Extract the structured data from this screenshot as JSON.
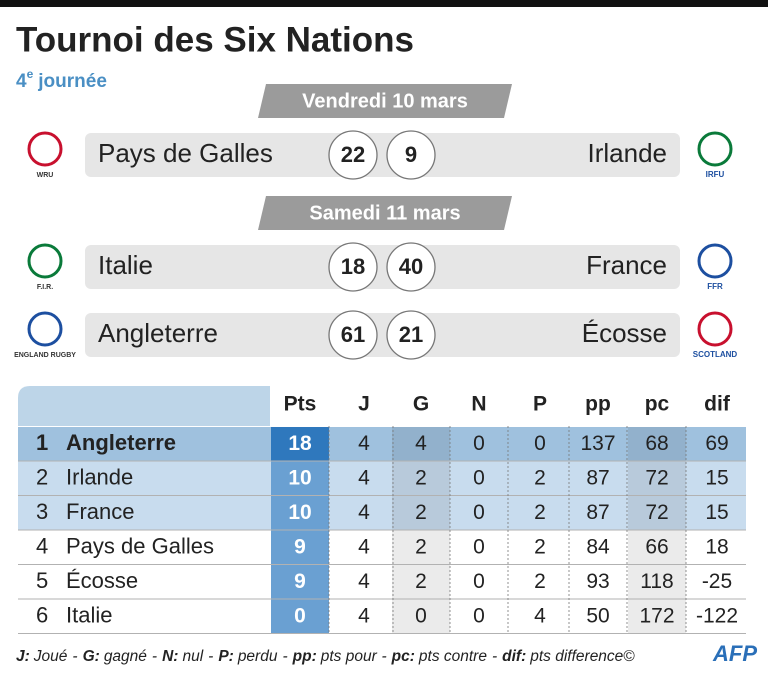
{
  "header": {
    "title": "Tournoi des Six Nations",
    "subtitle_number": "4",
    "subtitle_sup": "e",
    "subtitle_text": "journée"
  },
  "days": [
    {
      "label": "Vendredi 10 mars",
      "matches": [
        {
          "home": "Pays de Galles",
          "home_score": 22,
          "away_score": 9,
          "away": "Irlande",
          "home_logo": "WRU",
          "away_logo": "IRFU"
        }
      ]
    },
    {
      "label": "Samedi 11 mars",
      "matches": [
        {
          "home": "Italie",
          "home_score": 18,
          "away_score": 40,
          "away": "France",
          "home_logo": "F.I.R.",
          "away_logo": "FFR"
        },
        {
          "home": "Angleterre",
          "home_score": 61,
          "away_score": 21,
          "away": "Écosse",
          "home_logo": "ENGLAND RUGBY",
          "away_logo": "SCOTLAND"
        }
      ]
    }
  ],
  "table": {
    "columns": [
      "Pts",
      "J",
      "G",
      "N",
      "P",
      "pp",
      "pc",
      "dif"
    ],
    "rows": [
      [
        1,
        "Angleterre",
        18,
        4,
        4,
        0,
        0,
        137,
        68,
        69
      ],
      [
        2,
        "Irlande",
        10,
        4,
        2,
        0,
        2,
        87,
        72,
        15
      ],
      [
        3,
        "France",
        10,
        4,
        2,
        0,
        2,
        87,
        72,
        15
      ],
      [
        4,
        "Pays de Galles",
        9,
        4,
        2,
        0,
        2,
        84,
        66,
        18
      ],
      [
        5,
        "Écosse",
        9,
        4,
        2,
        0,
        2,
        93,
        118,
        -25
      ],
      [
        6,
        "Italie",
        0,
        4,
        0,
        0,
        4,
        50,
        172,
        -122
      ]
    ]
  },
  "footer": {
    "separator": "-",
    "legend": [
      {
        "key": "J:",
        "text": "Joué"
      },
      {
        "key": "G:",
        "text": "gagné"
      },
      {
        "key": "N:",
        "text": "nul"
      },
      {
        "key": "P:",
        "text": "perdu"
      },
      {
        "key": "pp:",
        "text": "pts pour"
      },
      {
        "key": "pc:",
        "text": "pts contre"
      },
      {
        "key": "dif:",
        "text": "pts difference"
      }
    ],
    "copyright": "©",
    "credit": "AFP"
  }
}
